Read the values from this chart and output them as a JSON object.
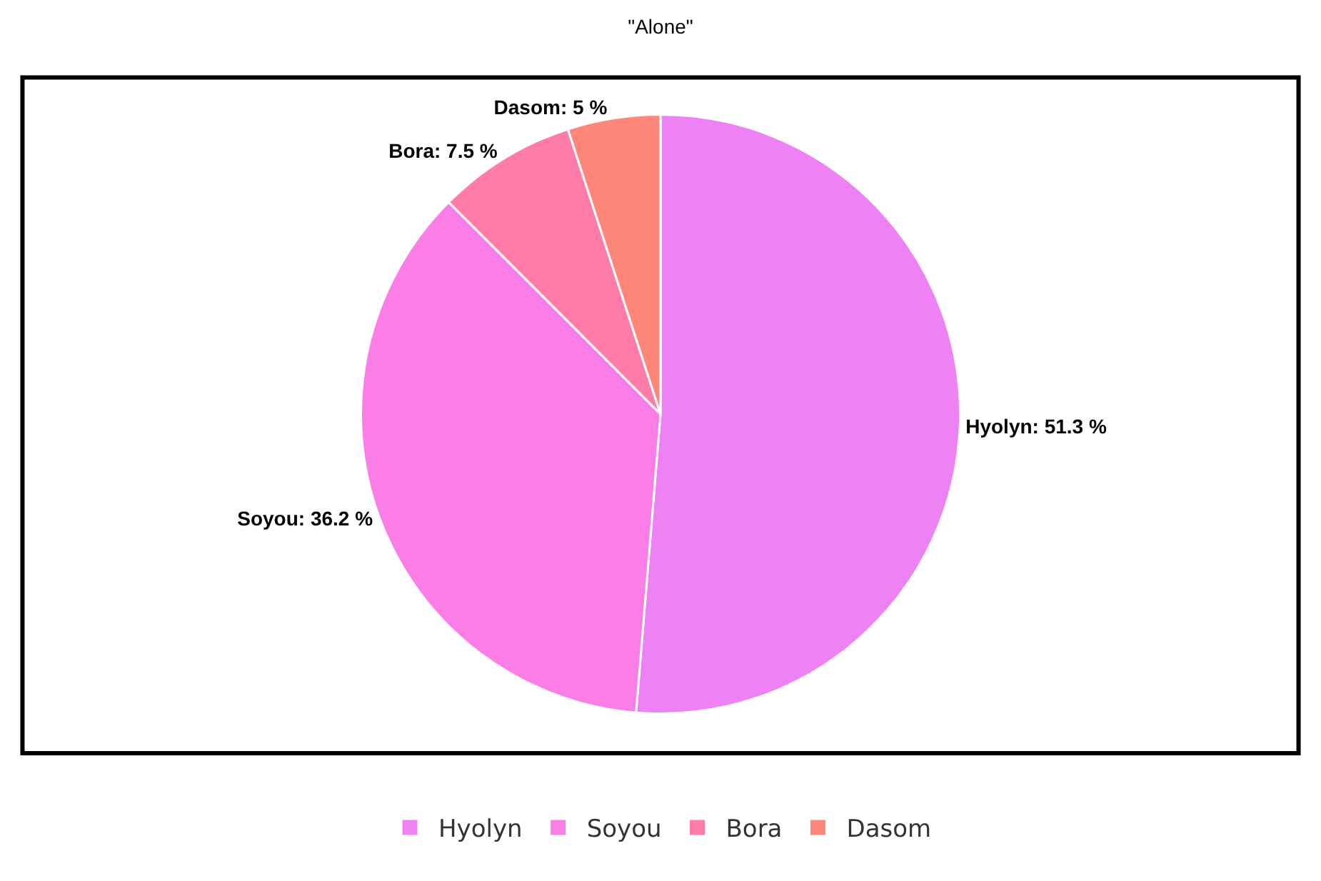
{
  "chart_data": {
    "type": "pie",
    "title": "\"Alone\"",
    "categories": [
      "Hyolyn",
      "Soyou",
      "Bora",
      "Dasom"
    ],
    "values": [
      51.3,
      36.2,
      7.5,
      5
    ],
    "colors": [
      "#ee82f5",
      "#fb7ee6",
      "#ff7ba8",
      "#ff877a"
    ],
    "value_labels": [
      "Hyolyn: 51.3 %",
      "Soyou: 36.2 %",
      "Bora: 7.5 %",
      "Dasom: 5 %"
    ],
    "legend": "bottom"
  }
}
